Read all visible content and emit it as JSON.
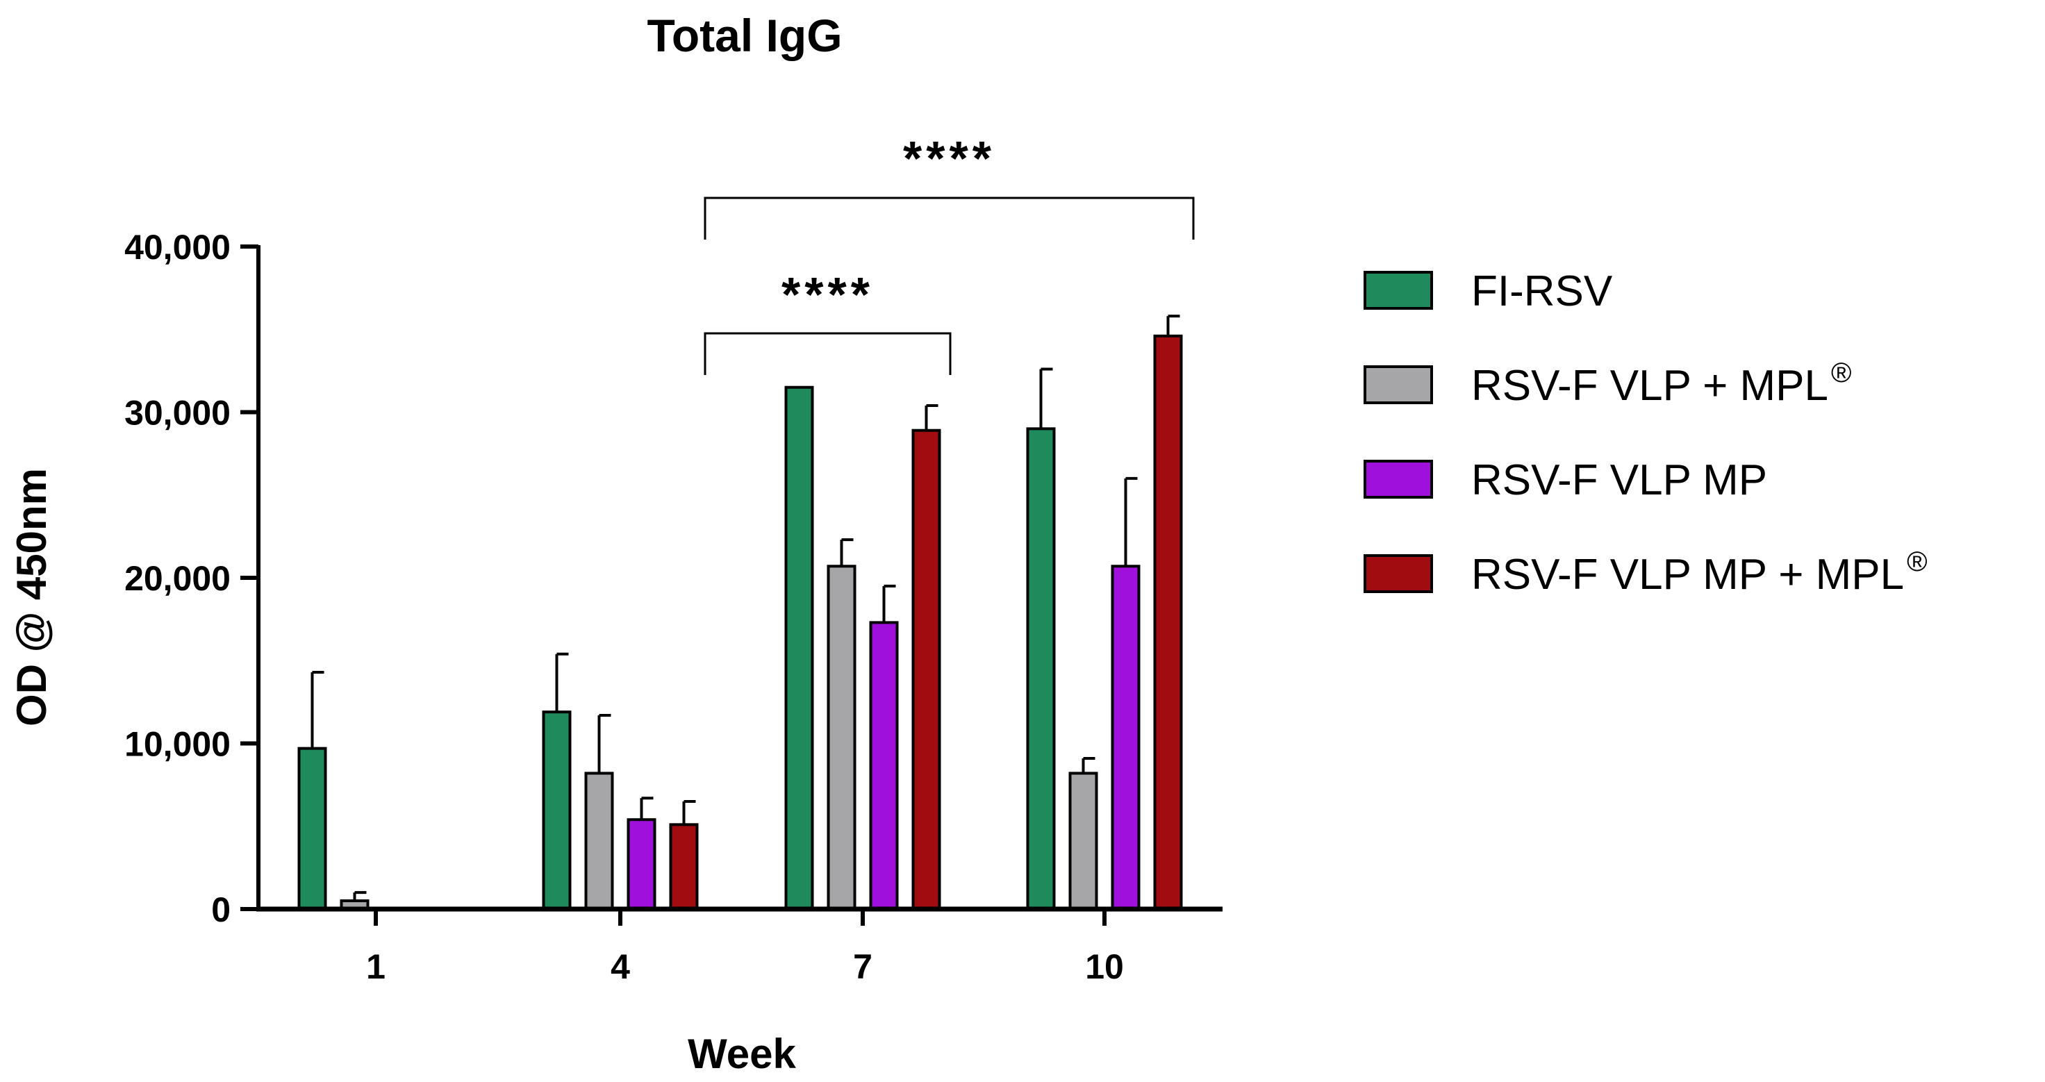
{
  "chart_data": {
    "type": "bar",
    "title": "Total IgG",
    "xlabel": "Week",
    "ylabel": "OD @ 450nm",
    "categories": [
      "1",
      "4",
      "7",
      "10"
    ],
    "ylim": [
      0,
      40000
    ],
    "yticks": [
      0,
      10000,
      20000,
      30000,
      40000
    ],
    "ytick_labels": [
      "0",
      "10,000",
      "20,000",
      "30,000",
      "40,000"
    ],
    "grid": false,
    "legend_position": "right",
    "series": [
      {
        "name": "FI-RSV",
        "label_main": "FI-RSV",
        "label_sup": "",
        "color": "#1f8a5c",
        "values": [
          9700,
          11900,
          31500,
          29000
        ],
        "errors": [
          4600,
          3500,
          0,
          3600
        ]
      },
      {
        "name": "RSV-F VLP + MPL®",
        "label_main": "RSV-F VLP + MPL",
        "label_sup": "®",
        "color": "#a6a6a8",
        "values": [
          500,
          8200,
          20700,
          8200
        ],
        "errors": [
          500,
          3500,
          1600,
          900
        ]
      },
      {
        "name": "RSV-F VLP MP",
        "label_main": "RSV-F VLP MP",
        "label_sup": "",
        "color": "#a010dc",
        "values": [
          0,
          5400,
          17300,
          20700
        ],
        "errors": [
          0,
          1300,
          2200,
          5300
        ]
      },
      {
        "name": "RSV-F VLP MP + MPL®",
        "label_main": "RSV-F VLP MP + MPL",
        "label_sup": "®",
        "color": "#a00c10",
        "values": [
          0,
          5100,
          28900,
          34600
        ],
        "errors": [
          0,
          1400,
          1500,
          1200
        ]
      }
    ],
    "annotations": [
      {
        "text": "****",
        "from_category": "4",
        "to_category": "7",
        "note": "significance bracket"
      },
      {
        "text": "****",
        "from_category": "4",
        "to_category": "10",
        "note": "significance bracket"
      }
    ]
  }
}
